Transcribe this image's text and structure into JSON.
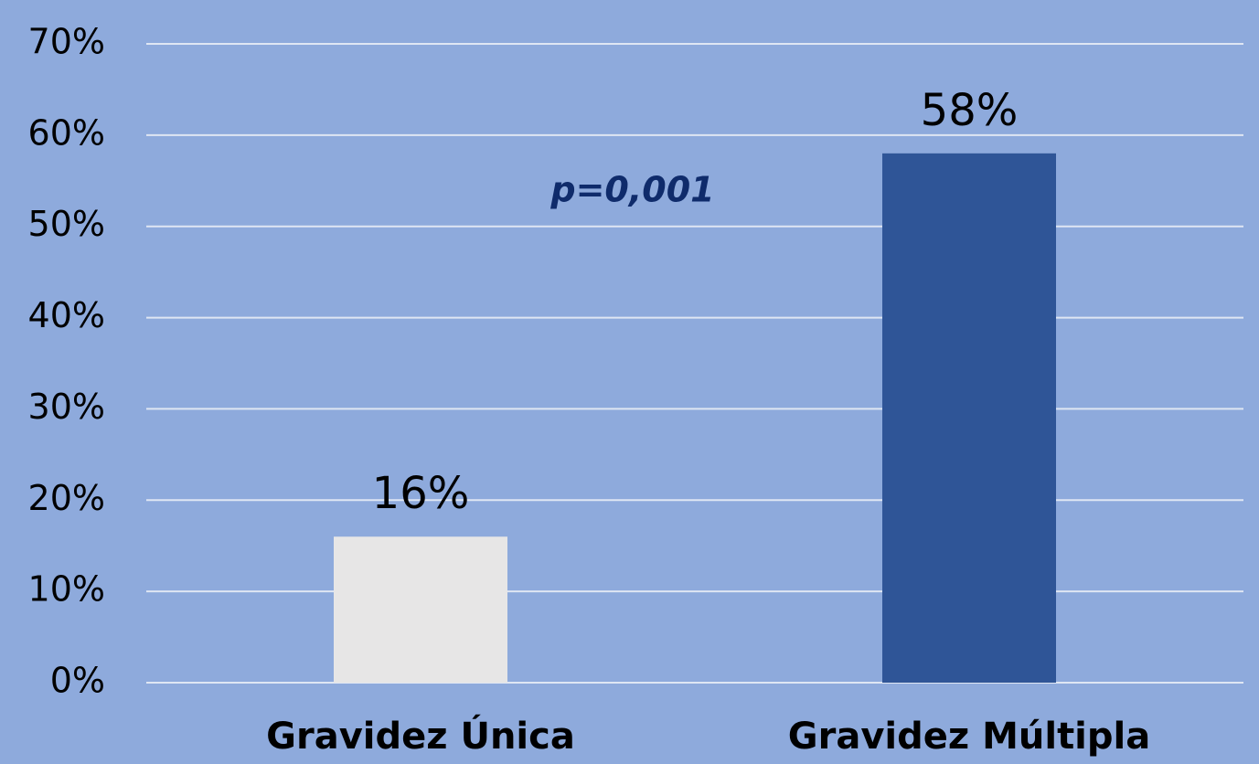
{
  "chart_data": {
    "type": "bar",
    "categories": [
      "Gravidez Única",
      "Gravidez Múltipla"
    ],
    "values": [
      16,
      58
    ],
    "value_labels": [
      "16%",
      "58%"
    ],
    "colors": [
      "#e7e6e6",
      "#2f5597"
    ],
    "annotation": "p=0,001",
    "ylim": [
      0,
      70
    ],
    "yticks": [
      {
        "value": 0,
        "label": "0%"
      },
      {
        "value": 10,
        "label": "10%"
      },
      {
        "value": 20,
        "label": "20%"
      },
      {
        "value": 30,
        "label": "30%"
      },
      {
        "value": 40,
        "label": "40%"
      },
      {
        "value": 50,
        "label": "50%"
      },
      {
        "value": 60,
        "label": "60%"
      },
      {
        "value": 70,
        "label": "70%"
      }
    ],
    "grid": true
  }
}
